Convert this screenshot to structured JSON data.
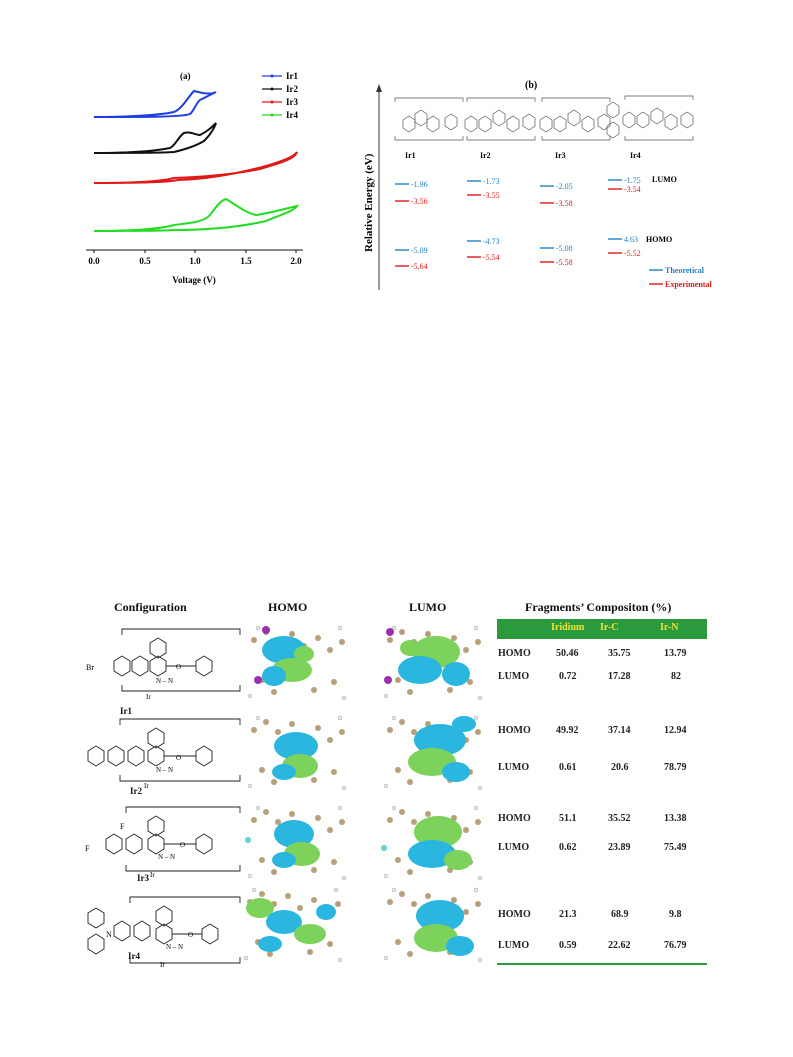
{
  "panel_a": {
    "label": "(a)",
    "legend": [
      {
        "name": "Ir1",
        "color": "#1e3fe0"
      },
      {
        "name": "Ir2",
        "color": "#111111"
      },
      {
        "name": "Ir3",
        "color": "#e01818"
      },
      {
        "name": "Ir4",
        "color": "#22dd22"
      }
    ],
    "xlabel": "Voltage (V)",
    "xticks": [
      "0.0",
      "0.5",
      "1.0",
      "1.5",
      "2.0"
    ]
  },
  "panel_b": {
    "label": "(b)",
    "ylabel": "Relative Energy (eV)",
    "compounds": [
      {
        "name": "Ir1",
        "lumo_theo": "-1.96",
        "lumo_exp": "-3.56",
        "homo_theo": "-5.09",
        "homo_exp": "-5.64"
      },
      {
        "name": "Ir2",
        "lumo_theo": "-1.73",
        "lumo_exp": "-3.55",
        "homo_theo": "-4.73",
        "homo_exp": "-5.54"
      },
      {
        "name": "Ir3",
        "lumo_theo": "-2.05",
        "lumo_exp": "-3.58",
        "homo_theo": "-5.08",
        "homo_exp": "-5.58"
      },
      {
        "name": "Ir4",
        "lumo_theo": "-1.75",
        "lumo_exp": "-3.54",
        "homo_theo": "4.63",
        "homo_exp": "-5.52"
      }
    ],
    "lumo_label": "LUMO",
    "homo_label": "HOMO",
    "legend": {
      "theoretical": "Theoretical",
      "experimental": "Experimental",
      "theo_color": "#1f7fc9",
      "exp_color": "#e01818"
    }
  },
  "chart_data": [
    {
      "type": "line",
      "title": "(a)",
      "xlabel": "Voltage (V)",
      "ylabel": "",
      "xlim": [
        0.0,
        2.0
      ],
      "series": [
        {
          "name": "Ir1",
          "x": [
            0.0,
            0.5,
            0.8,
            0.95,
            1.05,
            1.2,
            1.2,
            1.05,
            0.9,
            0.5,
            0.0
          ],
          "y": [
            0,
            0.02,
            0.1,
            0.6,
            0.95,
            0.75,
            0.7,
            0.2,
            0.0,
            0.0,
            0
          ]
        },
        {
          "name": "Ir2",
          "x": [
            0.0,
            0.5,
            0.75,
            0.85,
            0.95,
            1.2,
            1.2,
            1.0,
            0.8,
            0.5,
            0.0
          ],
          "y": [
            0,
            0.02,
            0.1,
            0.4,
            0.45,
            1.0,
            0.9,
            0.3,
            0.05,
            0.0,
            0
          ]
        },
        {
          "name": "Ir3",
          "x": [
            0.0,
            0.5,
            0.8,
            1.0,
            1.5,
            2.0,
            2.0,
            1.5,
            1.0,
            0.8,
            0.0
          ],
          "y": [
            0,
            0.02,
            0.1,
            0.15,
            0.5,
            1.0,
            0.85,
            0.25,
            0.05,
            0.05,
            0
          ]
        },
        {
          "name": "Ir4",
          "x": [
            0.0,
            0.5,
            0.8,
            1.1,
            1.3,
            1.5,
            2.0,
            2.0,
            1.5,
            1.0,
            0.5,
            0.0
          ],
          "y": [
            0,
            0.02,
            0.15,
            0.3,
            0.9,
            0.5,
            0.7,
            0.55,
            0.1,
            0.0,
            0.0,
            0
          ]
        }
      ]
    }
  ],
  "bottom": {
    "headers": {
      "configuration": "Configuration",
      "homo": "HOMO",
      "lumo": "LUMO",
      "fragments": "Fragments’ Compositon (%)"
    },
    "table_cols": [
      "Iridium",
      "Ir-C",
      "Ir-N"
    ],
    "rows": [
      {
        "compound": "Ir1",
        "homo": [
          "50.46",
          "35.75",
          "13.79"
        ],
        "lumo": [
          "0.72",
          "17.28",
          "82"
        ]
      },
      {
        "compound": "Ir2",
        "homo": [
          "49.92",
          "37.14",
          "12.94"
        ],
        "lumo": [
          "0.61",
          "20.6",
          "78.79"
        ]
      },
      {
        "compound": "Ir3",
        "homo": [
          "51.1",
          "35.52",
          "13.38"
        ],
        "lumo": [
          "0.62",
          "23.89",
          "75.49"
        ]
      },
      {
        "compound": "Ir4",
        "homo": [
          "21.3",
          "68.9",
          "9.8"
        ],
        "lumo": [
          "0.59",
          "22.62",
          "76.79"
        ]
      }
    ],
    "row_label_homo": "HOMO",
    "row_label_lumo": "LUMO",
    "struct_labels": {
      "br": "Br",
      "f": "F",
      "ir": "Ir",
      "o": "O",
      "n": "N",
      "nn": "N – N"
    }
  }
}
